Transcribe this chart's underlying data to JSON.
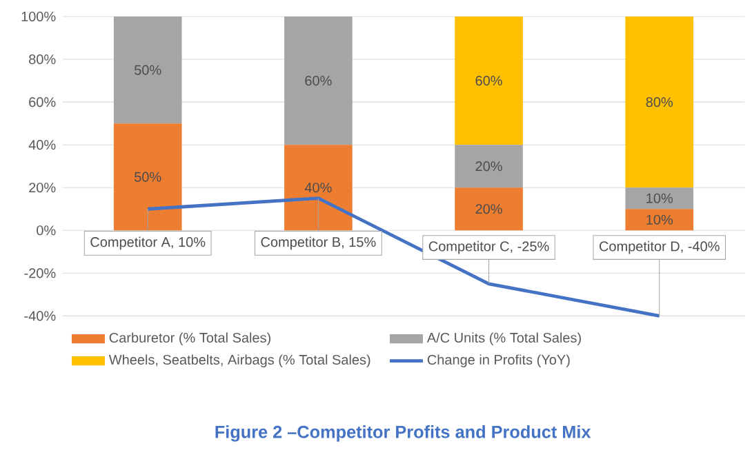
{
  "chart_data": {
    "type": "bar",
    "stacked": true,
    "title": "Figure 2 –Competitor Profits and Product Mix",
    "categories": [
      null,
      null,
      null,
      null
    ],
    "series": [
      {
        "name": "Carburetor (% Total Sales)",
        "color": "#ed7d31",
        "values": [
          50,
          40,
          20,
          10
        ],
        "value_labels": [
          "50%",
          "40%",
          "20%",
          "10%"
        ]
      },
      {
        "name": "A/C Units (% Total Sales)",
        "color": "#a5a5a5",
        "values": [
          50,
          60,
          20,
          10
        ],
        "value_labels": [
          "50%",
          "60%",
          "20%",
          "10%"
        ]
      },
      {
        "name": "Wheels, Seatbelts, Airbags (% Total Sales)",
        "color": "#ffc000",
        "values": [
          0,
          0,
          60,
          80
        ],
        "value_labels": [
          null,
          null,
          "60%",
          "80%"
        ]
      },
      {
        "name": "Change in Profits (YoY)",
        "type": "line",
        "color": "#4472c4",
        "values": [
          10,
          15,
          -25,
          -40
        ]
      }
    ],
    "ylim": [
      -40,
      100
    ],
    "yticks": [
      {
        "value": -40,
        "label": "-40%"
      },
      {
        "value": -20,
        "label": "-20%"
      },
      {
        "value": 0,
        "label": "0%"
      },
      {
        "value": 20,
        "label": "20%"
      },
      {
        "value": 40,
        "label": "40%"
      },
      {
        "value": 60,
        "label": "60%"
      },
      {
        "value": 80,
        "label": "80%"
      },
      {
        "value": 100,
        "label": "100%"
      }
    ],
    "grid": "y",
    "legend": "bottom",
    "tick_labels": "y",
    "annotations": [
      {
        "text": "Competitor A, 10%",
        "y": 10
      },
      {
        "text": "Competitor B, 15%",
        "y": 15
      },
      {
        "text": "Competitor C, -25%",
        "y": -25
      },
      {
        "text": "Competitor D, -40%",
        "y": -40
      }
    ]
  }
}
